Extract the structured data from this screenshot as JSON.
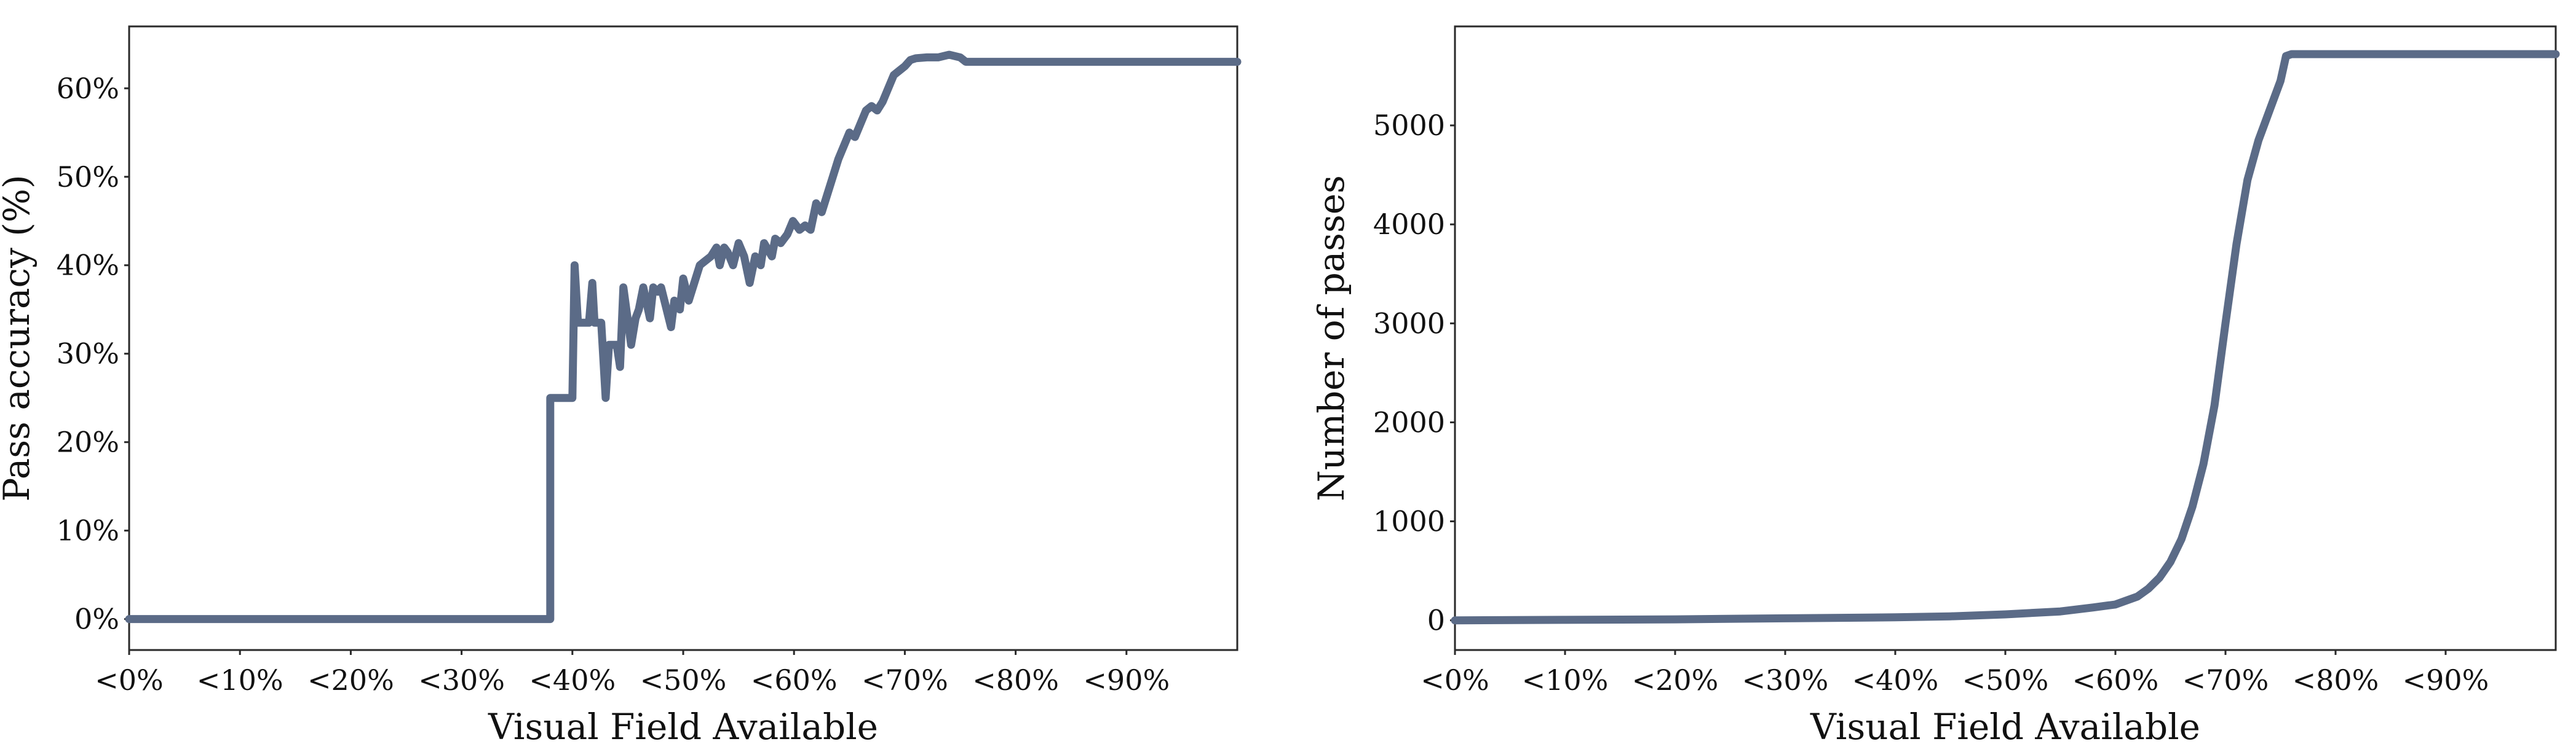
{
  "colors": {
    "series": "#5b6b87",
    "frame": "#2a2a2a"
  },
  "chart_data": [
    {
      "type": "line",
      "title": "",
      "xlabel": "Visual Field Available",
      "ylabel": "Pass accuracy (%)",
      "xlim": [
        0,
        100
      ],
      "ylim": [
        -3.5,
        67
      ],
      "grid": false,
      "x_ticks": [
        0,
        10,
        20,
        30,
        40,
        50,
        60,
        70,
        80,
        90
      ],
      "x_tick_labels": [
        "<0%",
        "<10%",
        "<20%",
        "<30%",
        "<40%",
        "<50%",
        "<60%",
        "<70%",
        "<80%",
        "<90%"
      ],
      "y_ticks": [
        0,
        10,
        20,
        30,
        40,
        50,
        60
      ],
      "y_tick_labels": [
        "0%",
        "10%",
        "20%",
        "30%",
        "40%",
        "50%",
        "60%"
      ],
      "series": [
        {
          "name": "Pass accuracy",
          "x": [
            0,
            38,
            38,
            38.1,
            40,
            40.2,
            40.5,
            41.5,
            41.8,
            42,
            42.6,
            43,
            43.3,
            44,
            44.3,
            44.6,
            45.3,
            45.7,
            46,
            46.4,
            47,
            47.3,
            47.7,
            48,
            48.5,
            48.9,
            49.2,
            49.7,
            50,
            50.5,
            51,
            51.5,
            52,
            52.5,
            53,
            53.3,
            53.7,
            54,
            54.5,
            55,
            55.5,
            56,
            56.5,
            57,
            57.3,
            58,
            58.3,
            58.8,
            59.4,
            59.9,
            60.5,
            61,
            61.5,
            62,
            62.5,
            63,
            63.5,
            64,
            64.5,
            65,
            65.5,
            66,
            66.5,
            67,
            67.5,
            68,
            68.5,
            69,
            69.5,
            70,
            70.5,
            71,
            72,
            73,
            74,
            75,
            75.5,
            76,
            100
          ],
          "values": [
            0,
            0,
            25,
            25,
            25,
            40,
            33.5,
            33.5,
            38,
            33.5,
            33.5,
            25,
            31,
            31,
            28.5,
            37.5,
            31,
            34,
            35,
            37.5,
            34,
            37.5,
            37,
            37.5,
            35,
            33,
            36,
            35,
            38.5,
            36,
            38,
            40,
            40.5,
            41,
            42,
            40,
            42,
            41.5,
            40,
            42.5,
            41,
            38,
            41,
            40,
            42.5,
            41,
            43,
            42.5,
            43.5,
            45,
            44,
            44.5,
            44,
            47,
            46,
            48,
            50,
            52,
            53.5,
            55,
            54.5,
            56,
            57.5,
            58,
            57.5,
            58.5,
            60,
            61.5,
            62,
            62.5,
            63.2,
            63.4,
            63.5,
            63.5,
            63.8,
            63.5,
            63,
            63,
            63
          ]
        }
      ]
    },
    {
      "type": "line",
      "title": "",
      "xlabel": "Visual Field Available",
      "ylabel": "Number of passes",
      "xlim": [
        0,
        100
      ],
      "ylim": [
        -300,
        6000
      ],
      "grid": false,
      "x_ticks": [
        0,
        10,
        20,
        30,
        40,
        50,
        60,
        70,
        80,
        90
      ],
      "x_tick_labels": [
        "<0%",
        "<10%",
        "<20%",
        "<30%",
        "<40%",
        "<50%",
        "<60%",
        "<70%",
        "<80%",
        "<90%"
      ],
      "y_ticks": [
        0,
        1000,
        2000,
        3000,
        4000,
        5000
      ],
      "y_tick_labels": [
        "0",
        "1000",
        "2000",
        "3000",
        "4000",
        "5000"
      ],
      "series": [
        {
          "name": "Number of passes",
          "x": [
            0,
            10,
            20,
            30,
            40,
            45,
            50,
            55,
            58,
            60,
            62,
            63,
            64,
            65,
            66,
            67,
            68,
            69,
            70,
            71,
            72,
            73,
            74,
            75,
            75.5,
            76,
            100
          ],
          "values": [
            0,
            5,
            10,
            20,
            30,
            40,
            60,
            90,
            130,
            160,
            240,
            320,
            430,
            590,
            820,
            1150,
            1580,
            2170,
            3000,
            3800,
            4450,
            4850,
            5150,
            5450,
            5700,
            5720,
            5720
          ]
        }
      ]
    }
  ]
}
